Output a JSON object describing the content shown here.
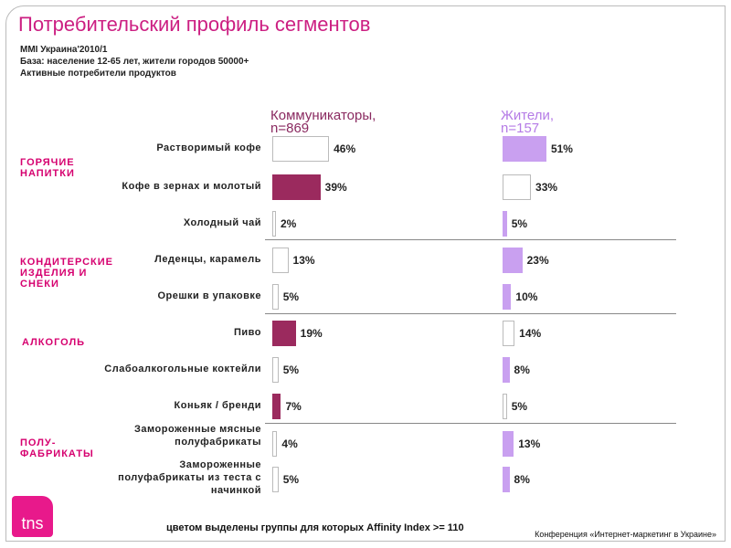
{
  "title": "Потребительский профиль сегментов",
  "source": "MMI Украина'2010/1",
  "base": "База: население 12-65 лет, жители городов 50000+",
  "audience": "Активные потребители продуктов",
  "footnote": "цветом выделены группы для которых Affinity Index >= 110",
  "conference": "Конференция «Интернет-маркетинг в Украине»",
  "logo": "tns",
  "colors": {
    "title": "#cc1f82",
    "category": "#d6006f",
    "communicators": "#9b2a5e",
    "residents": "#c9a0f0",
    "plain": "#ffffff"
  },
  "chart_data": {
    "type": "bar",
    "orientation": "horizontal",
    "unit": "%",
    "groups": [
      {
        "name": "ГОРЯЧИЕ НАПИТКИ",
        "rows": [
          0,
          1,
          2
        ]
      },
      {
        "name": "КОНДИТЕРСКИЕ ИЗДЕЛИЯ И СНЕКИ",
        "rows": [
          3,
          4
        ]
      },
      {
        "name": "АЛКОГОЛЬ",
        "rows": [
          5,
          6,
          7
        ]
      },
      {
        "name": "ПОЛУ-ФАБРИКАТЫ",
        "rows": [
          8,
          9
        ]
      }
    ],
    "categories": [
      "Растворимый кофе",
      "Кофе в зернах и молотый",
      "Холодный чай",
      "Леденцы, карамель",
      "Орешки в упаковке",
      "Пиво",
      "Слабоалкогольные коктейли",
      "Коньяк / бренди",
      "Замороженные мясные полуфабрикаты",
      "Замороженные полуфабрикаты из теста с начинкой"
    ],
    "series": [
      {
        "name": "Коммуникаторы, n=869",
        "values": [
          46,
          39,
          2,
          13,
          5,
          19,
          5,
          7,
          4,
          5
        ],
        "highlighted": [
          false,
          true,
          false,
          false,
          false,
          true,
          false,
          true,
          false,
          false
        ]
      },
      {
        "name": "Жители, n=157",
        "values": [
          51,
          33,
          5,
          23,
          10,
          14,
          8,
          5,
          13,
          8
        ],
        "highlighted": [
          true,
          false,
          true,
          true,
          true,
          false,
          true,
          false,
          true,
          true
        ]
      }
    ]
  }
}
